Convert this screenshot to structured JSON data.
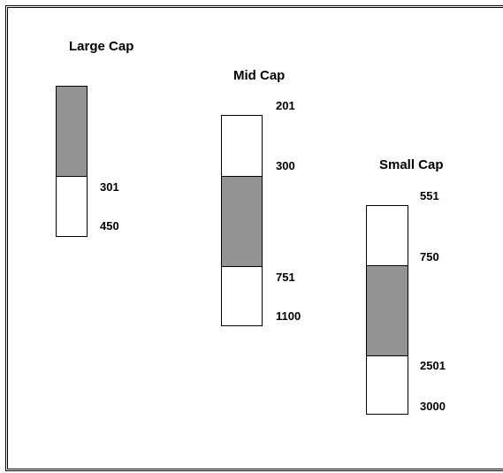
{
  "columns": [
    {
      "title": "Large Cap",
      "labels": [
        "301",
        "450"
      ]
    },
    {
      "title": "Mid Cap",
      "labels": [
        "201",
        "300",
        "751",
        "1100"
      ]
    },
    {
      "title": "Small Cap",
      "labels": [
        "551",
        "750",
        "2501",
        "3000"
      ]
    }
  ],
  "colors": {
    "filled": "#939393",
    "empty": "#ffffff",
    "outline": "#000000"
  }
}
